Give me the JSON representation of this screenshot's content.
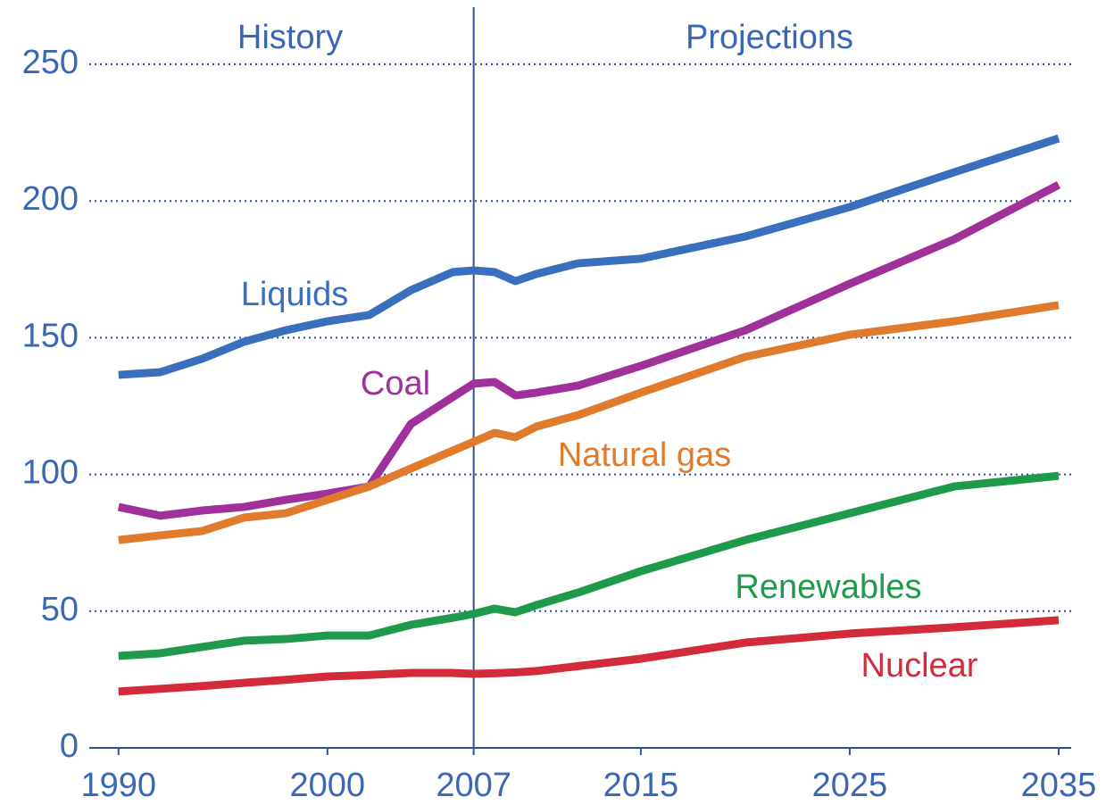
{
  "chart_data": {
    "type": "line",
    "annotations": [
      "History",
      "Projections"
    ],
    "divider_x": 2007,
    "x": [
      1990,
      1992,
      1994,
      1996,
      1998,
      2000,
      2002,
      2004,
      2006,
      2007,
      2008,
      2009,
      2010,
      2012,
      2015,
      2020,
      2025,
      2030,
      2035
    ],
    "series": [
      {
        "name": "Liquids",
        "color": "#3a6fbe",
        "values": [
          136.4,
          137.4,
          142.3,
          148.5,
          152.7,
          156,
          158.3,
          167.4,
          174,
          174.6,
          174,
          170.7,
          173.3,
          177.2,
          178.9,
          187,
          197.8,
          210.5,
          222.9
        ]
      },
      {
        "name": "Coal",
        "color": "#a0309a",
        "values": [
          88.1,
          84.9,
          86.8,
          88.1,
          90.7,
          93,
          95.6,
          118.5,
          128.3,
          133.2,
          133.8,
          128.9,
          129.9,
          132.5,
          139.7,
          152.7,
          169.7,
          186,
          205.9
        ]
      },
      {
        "name": "Natural gas",
        "color": "#e07b2e",
        "values": [
          76,
          77.7,
          79.3,
          84.2,
          85.8,
          90.7,
          95.6,
          102.2,
          108.7,
          111.9,
          115.2,
          113.6,
          117.5,
          121.7,
          129.9,
          143,
          151.1,
          156,
          161.9
        ]
      },
      {
        "name": "Renewables",
        "color": "#1f9a4a",
        "values": [
          33.6,
          34.6,
          36.9,
          39.2,
          39.8,
          41.1,
          41.1,
          45,
          47.6,
          49,
          50.9,
          49.6,
          52.2,
          56.8,
          64.6,
          76,
          85.8,
          95.6,
          99.5
        ]
      },
      {
        "name": "Nuclear",
        "color": "#d42b3a",
        "values": [
          20.6,
          21.6,
          22.6,
          23.8,
          24.9,
          26.1,
          26.7,
          27.4,
          27.4,
          27.1,
          27.3,
          27.6,
          28.1,
          29.9,
          32.6,
          38.5,
          41.8,
          44.1,
          46.7
        ]
      }
    ],
    "xlim": [
      1988.6,
      2035.6
    ],
    "xticks": [
      1990,
      2000,
      2007,
      2015,
      2025,
      2035
    ],
    "ylim": [
      0,
      250
    ],
    "yticks": [
      0,
      50,
      100,
      150,
      200,
      250
    ],
    "grid": true
  }
}
